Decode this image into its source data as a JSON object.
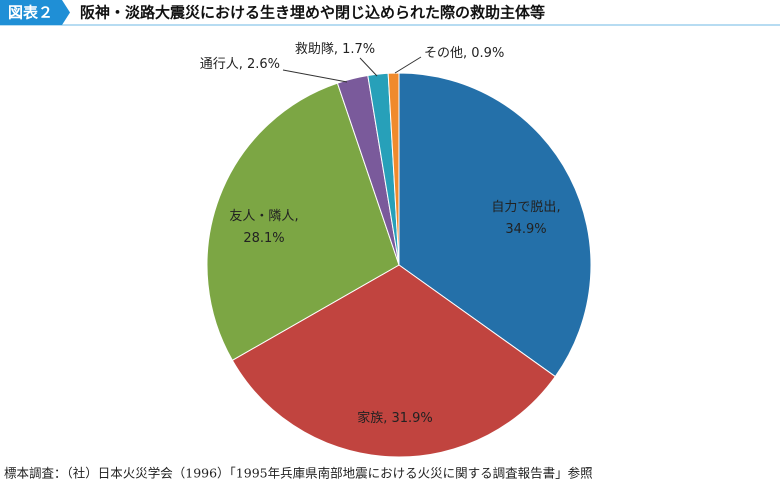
{
  "header": {
    "figure_no": "図表２",
    "title": "阪神・淡路大震災における生き埋めや閉じ込められた際の救助主体等"
  },
  "chart_data": {
    "type": "pie",
    "categories": [
      "自力で脱出",
      "家族",
      "友人・隣人",
      "通行人",
      "救助隊",
      "その他"
    ],
    "values": [
      34.9,
      31.9,
      28.1,
      2.6,
      1.7,
      0.9
    ],
    "value_labels": [
      "34.9%",
      "31.9%",
      "28.1%",
      "2.6%",
      "1.7%",
      "0.9%"
    ],
    "label_separator": ", ",
    "colors": [
      "#2470a9",
      "#c1443f",
      "#7ca644",
      "#7a5a9b",
      "#27a0b9",
      "#f08a2c"
    ]
  },
  "footer": {
    "source": "標本調査：（社）日本火災学会（1996）「1995年兵庫県南部地震における火災に関する調査報告書」参照"
  }
}
